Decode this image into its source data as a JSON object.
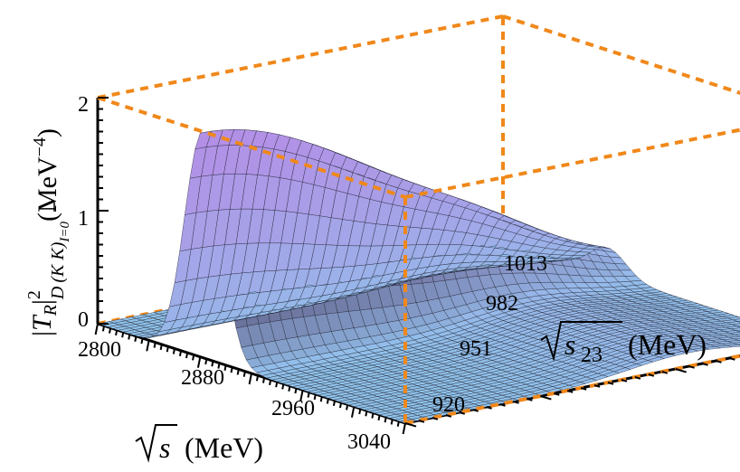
{
  "chart_data": {
    "type": "surface3d",
    "x_axis": {
      "label_main": "s",
      "label_unit": "(MeV)",
      "range": [
        2800,
        3040
      ],
      "ticks": [
        "2800",
        "2880",
        "2960",
        "3040"
      ]
    },
    "y_axis": {
      "label_main": "s",
      "label_sub": "23",
      "label_unit": "(MeV)",
      "range": [
        920,
        1013
      ],
      "ticks": [
        "920",
        "951",
        "982",
        "1013"
      ]
    },
    "z_axis": {
      "label_T": "T",
      "label_R": "R",
      "label_sup": "2",
      "label_D": "D",
      "label_KK": "(K K)",
      "label_I": "I=0",
      "label_unit": "(MeV",
      "label_unit_sup": "−4",
      "label_unit_close": ")",
      "range": [
        0,
        2
      ],
      "ticks": [
        "0",
        "1",
        "2"
      ]
    },
    "peak": {
      "x": 2882,
      "y": 920,
      "z": 2.0,
      "width_x": 14,
      "width_y": 45
    },
    "ridge": {
      "y": 985,
      "x_from": 2830,
      "x_to": 3040,
      "depth": 0.1
    },
    "colors": {
      "box": "#f0881a",
      "surface_low": "#8fc2ea",
      "surface_high": "#b48ee6",
      "mesh": "#1c1c2a"
    }
  }
}
